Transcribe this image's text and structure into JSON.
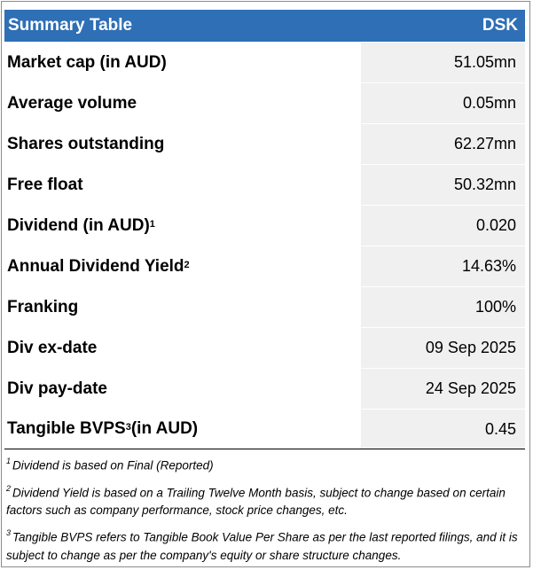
{
  "table": {
    "title": "Summary Table",
    "ticker": "DSK",
    "rows": [
      {
        "label": "Market cap (in AUD)",
        "sup": "",
        "label_suffix": "",
        "value": "51.05mn"
      },
      {
        "label": "Average volume",
        "sup": "",
        "label_suffix": "",
        "value": "0.05mn"
      },
      {
        "label": "Shares outstanding",
        "sup": "",
        "label_suffix": "",
        "value": "62.27mn"
      },
      {
        "label": "Free float",
        "sup": "",
        "label_suffix": "",
        "value": "50.32mn"
      },
      {
        "label": "Dividend (in AUD)",
        "sup": "1",
        "label_suffix": "",
        "value": "0.020"
      },
      {
        "label": "Annual Dividend Yield",
        "sup": "2",
        "label_suffix": "",
        "value": "14.63%"
      },
      {
        "label": "Franking",
        "sup": "",
        "label_suffix": "",
        "value": "100%"
      },
      {
        "label": "Div ex-date",
        "sup": "",
        "label_suffix": "",
        "value": "09 Sep 2025"
      },
      {
        "label": "Div pay-date",
        "sup": "",
        "label_suffix": "",
        "value": "24 Sep 2025"
      },
      {
        "label": "Tangible BVPS",
        "sup": "3",
        "label_suffix": " (in AUD)",
        "value": "0.45"
      }
    ]
  },
  "footnotes": [
    {
      "num": "1",
      "text": "Dividend is based on Final (Reported)"
    },
    {
      "num": "2",
      "text": "Dividend Yield is based on a Trailing Twelve Month basis, subject to change based on certain factors such as company performance, stock price changes, etc."
    },
    {
      "num": "3",
      "text": "Tangible BVPS refers to Tangible Book Value Per Share as per the last reported filings, and it is subject to change as per the company's equity or share structure changes."
    }
  ],
  "colors": {
    "header_bg": "#2e6fb5",
    "value_bg": "#f0f0f0"
  }
}
